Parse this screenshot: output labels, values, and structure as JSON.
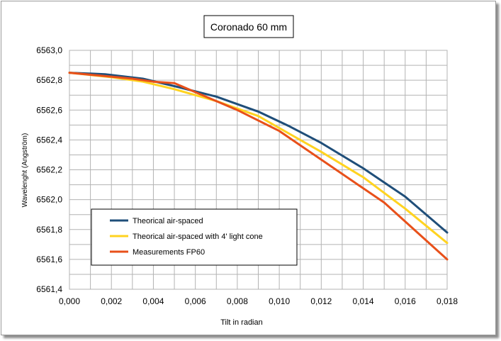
{
  "chart_data": {
    "type": "line",
    "title": "Coronado 60 mm",
    "xlabel": "Tilt in radian",
    "ylabel": "Wavelenght (Angström)",
    "xlim": [
      0,
      0.018
    ],
    "ylim": [
      6561.4,
      6563.0
    ],
    "x_ticks": [
      "0,000",
      "0,002",
      "0,004",
      "0,006",
      "0,008",
      "0,010",
      "0,012",
      "0,014",
      "0,016",
      "0,018"
    ],
    "y_ticks": [
      "6561,4",
      "6561,6",
      "6561,8",
      "6562,0",
      "6562,2",
      "6562,4",
      "6562,6",
      "6562,8",
      "6563,0"
    ],
    "grid": true,
    "legend_position": "bottom-left",
    "series": [
      {
        "name": "Theorical air-spaced",
        "color": "#1f4e79",
        "x": [
          0,
          0.0017,
          0.0035,
          0.005,
          0.007,
          0.009,
          0.0105,
          0.012,
          0.014,
          0.016,
          0.018
        ],
        "y": [
          6562.85,
          6562.84,
          6562.81,
          6562.76,
          6562.69,
          6562.59,
          6562.49,
          6562.38,
          6562.21,
          6562.02,
          6561.78
        ]
      },
      {
        "name": "Theorical air-spaced with 4' light cone",
        "color": "#ffd320",
        "x": [
          0,
          0.002,
          0.0035,
          0.005,
          0.007,
          0.009,
          0.0105,
          0.012,
          0.014,
          0.016,
          0.018
        ],
        "y": [
          6562.85,
          6562.82,
          6562.79,
          6562.74,
          6562.66,
          6562.56,
          6562.44,
          6562.32,
          6562.15,
          6561.94,
          6561.71
        ]
      },
      {
        "name": "Measurements FP60",
        "color": "#e8501a",
        "x": [
          0,
          0.0015,
          0.003,
          0.004,
          0.005,
          0.006,
          0.008,
          0.01,
          0.015,
          0.018
        ],
        "y": [
          6562.85,
          6562.83,
          6562.81,
          6562.79,
          6562.78,
          6562.72,
          6562.6,
          6562.46,
          6561.98,
          6561.6
        ]
      }
    ]
  }
}
